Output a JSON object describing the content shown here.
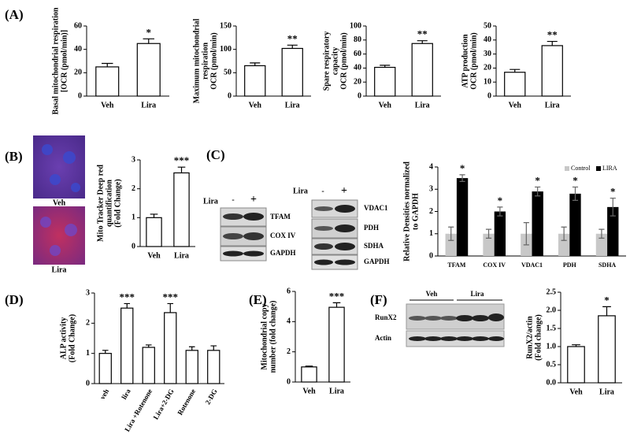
{
  "panel_labels": [
    "(A)",
    "(B)",
    "(C)",
    "(D)",
    "(E)",
    "(F)"
  ],
  "images": {
    "labels": [
      "Veh",
      "Lira"
    ]
  },
  "blots": {
    "c_left": {
      "treatment": "Lira",
      "lanes": [
        "-",
        "+"
      ],
      "rows": [
        "TFAM",
        "COX IV",
        "GAPDH"
      ]
    },
    "c_right": {
      "treatment": "Lira",
      "lanes": [
        "-",
        "+"
      ],
      "rows": [
        "VDAC1",
        "PDH",
        "SDHA",
        "GAPDH"
      ]
    },
    "f": {
      "groups": [
        "Veh",
        "Lira"
      ],
      "rows": [
        "RunX2",
        "Actin"
      ]
    }
  },
  "chart_data": [
    {
      "type": "bar",
      "ylabel": [
        "Basal mitochondrial respiration",
        "[OCR (pmol/min)]"
      ],
      "categories": [
        "Veh",
        "Lira"
      ],
      "values": [
        25,
        45
      ],
      "errors": [
        3,
        4
      ],
      "significance": [
        null,
        "*"
      ],
      "color": "#ffffff",
      "ylim": [
        0,
        60
      ],
      "yticks": [
        0,
        20,
        40,
        60
      ]
    },
    {
      "type": "bar",
      "ylabel": [
        "Maximum mitochondrial",
        "respiration",
        "OCR (pmol/min)"
      ],
      "categories": [
        "Veh",
        "Lira"
      ],
      "values": [
        65,
        102
      ],
      "errors": [
        6,
        7
      ],
      "significance": [
        null,
        "**"
      ],
      "color": "#ffffff",
      "ylim": [
        0,
        150
      ],
      "yticks": [
        0,
        50,
        100,
        150
      ]
    },
    {
      "type": "bar",
      "ylabel": [
        "Spare respiratory",
        "capacity",
        "OCR (pmol/min)"
      ],
      "categories": [
        "Veh",
        "Lira"
      ],
      "values": [
        41,
        75
      ],
      "errors": [
        3,
        4
      ],
      "significance": [
        null,
        "**"
      ],
      "color": "#ffffff",
      "ylim": [
        0,
        100
      ],
      "yticks": [
        0,
        20,
        40,
        60,
        80,
        100
      ]
    },
    {
      "type": "bar",
      "ylabel": [
        "ATP production",
        "OCR (pmol/min)"
      ],
      "categories": [
        "Veh",
        "Lira"
      ],
      "values": [
        17,
        36
      ],
      "errors": [
        2,
        3
      ],
      "significance": [
        null,
        "**"
      ],
      "color": "#ffffff",
      "ylim": [
        0,
        50
      ],
      "yticks": [
        0,
        10,
        20,
        30,
        40,
        50
      ]
    },
    {
      "type": "bar",
      "ylabel": [
        "Mito Tracker Deep red",
        "quantification",
        "(Fold Change)"
      ],
      "categories": [
        "Veh",
        "Lira"
      ],
      "values": [
        1,
        2.55
      ],
      "errors": [
        0.12,
        0.2
      ],
      "significance": [
        null,
        "***"
      ],
      "color": "#ffffff",
      "ylim": [
        0,
        3
      ],
      "yticks": [
        0,
        1,
        2,
        3
      ]
    },
    {
      "type": "grouped_bar",
      "ylabel": [
        "Relative Densities normalized",
        "to GAPDH"
      ],
      "categories": [
        "TFAM",
        "COX IV",
        "VDAC1",
        "PDH",
        "SDHA"
      ],
      "legend": "top-right",
      "series": [
        {
          "name": "Control",
          "color": "#c8c8c8",
          "values": [
            1,
            1,
            1,
            1,
            1
          ],
          "errors": [
            0.3,
            0.2,
            0.5,
            0.3,
            0.2
          ]
        },
        {
          "name": "LIRA",
          "color": "#000000",
          "values": [
            3.5,
            2,
            2.9,
            2.8,
            2.2
          ],
          "errors": [
            0.15,
            0.2,
            0.2,
            0.3,
            0.4
          ],
          "significance": [
            "*",
            "*",
            "*",
            "*",
            "*"
          ]
        }
      ],
      "ylim": [
        0,
        4
      ],
      "yticks": [
        0,
        1,
        2,
        3,
        4
      ]
    },
    {
      "type": "bar",
      "ylabel": [
        "ALP activity",
        "(Fold Change)"
      ],
      "categories": [
        "veh",
        "lira",
        "Lira +Rotenone",
        "Lira+2-DG",
        "Rotenone",
        "2-DG"
      ],
      "values": [
        1,
        2.5,
        1.2,
        2.35,
        1.1,
        1.1
      ],
      "errors": [
        0.1,
        0.15,
        0.08,
        0.3,
        0.12,
        0.15
      ],
      "significance": [
        null,
        "***",
        null,
        "***",
        null,
        null
      ],
      "color": "#ffffff",
      "ylim": [
        0,
        3
      ],
      "yticks": [
        0,
        1,
        2,
        3
      ]
    },
    {
      "type": "bar",
      "ylabel": [
        "Mitochondrial copy",
        "number (fold change)"
      ],
      "categories": [
        "Veh",
        "Lira"
      ],
      "values": [
        1,
        4.95
      ],
      "errors": [
        0.05,
        0.3
      ],
      "significance": [
        null,
        "***"
      ],
      "color": "#ffffff",
      "ylim": [
        0,
        6
      ],
      "yticks": [
        0,
        2,
        4,
        6
      ]
    },
    {
      "type": "bar",
      "ylabel": [
        "RunX2/actin",
        "(Fold change)"
      ],
      "categories": [
        "Veh",
        "Lira"
      ],
      "values": [
        1,
        1.85
      ],
      "errors": [
        0.05,
        0.25
      ],
      "significance": [
        null,
        "*"
      ],
      "color": "#ffffff",
      "ylim": [
        0,
        2.5
      ],
      "yticks": [
        {
          "value": 0,
          "label": "0.0"
        },
        {
          "value": 0.5,
          "label": "0.5"
        },
        {
          "value": 1,
          "label": "1.0"
        },
        {
          "value": 1.5,
          "label": "1.5"
        },
        {
          "value": 2,
          "label": "2.0"
        },
        {
          "value": 2.5,
          "label": "2.5"
        }
      ]
    }
  ]
}
